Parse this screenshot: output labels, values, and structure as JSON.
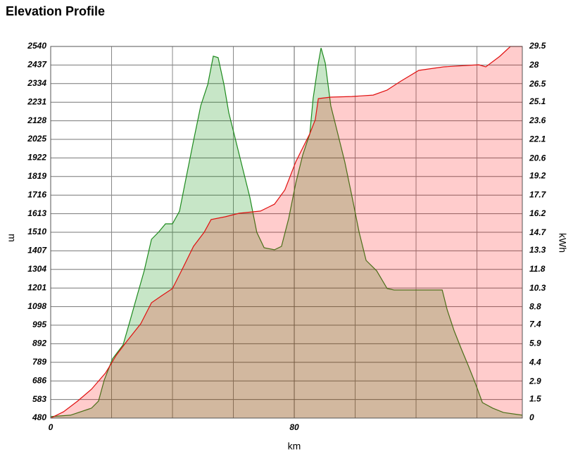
{
  "chart_data": {
    "type": "area",
    "title": "Elevation Profile",
    "x_label": "km",
    "y_label": "m",
    "y2_label": "kWh",
    "xlim": [
      0,
      154.9
    ],
    "xticks": [
      0,
      80
    ],
    "xgrid": [
      20,
      40,
      60,
      100,
      120,
      140
    ],
    "ylim": [
      480,
      2540
    ],
    "yticks": [
      480,
      583,
      686,
      789,
      892,
      995,
      1098,
      1201,
      1304,
      1407,
      1510,
      1613,
      1716,
      1819,
      1922,
      2025,
      2128,
      2231,
      2334,
      2437,
      2540
    ],
    "y2lim": [
      0,
      29.5
    ],
    "y2ticks": [
      0,
      1.5,
      2.9,
      4.4,
      5.9,
      7.4,
      8.8,
      10.3,
      11.8,
      13.3,
      14.7,
      16.2,
      17.7,
      19.2,
      20.6,
      22.1,
      23.6,
      25.1,
      26.5,
      28,
      29.5
    ],
    "grid": true,
    "series": [
      {
        "color": "#1e8a1e",
        "fill": "rgba(0,140,0,0.22)",
        "x": [
          0,
          6.5,
          13.4,
          15.7,
          17.6,
          20.3,
          23.8,
          26.1,
          28.4,
          30.7,
          33.1,
          35.4,
          37.7,
          40.0,
          42.3,
          44.6,
          46.9,
          49.3,
          51.6,
          53.4,
          55.0,
          56.9,
          58.5,
          60.8,
          63.1,
          65.4,
          67.7,
          70.1,
          73.5,
          75.8,
          78.2,
          80.5,
          82.8,
          85.1,
          86.2,
          87.9,
          88.8,
          90.2,
          92.0,
          94.3,
          96.6,
          99.0,
          101.3,
          103.6,
          107.1,
          110.5,
          112.8,
          128.6,
          130.2,
          132.5,
          134.8,
          137.2,
          139.5,
          141.8,
          145.2,
          148.7,
          154.9
        ],
        "values": [
          488,
          496,
          535,
          574,
          691,
          808,
          886,
          1022,
          1159,
          1296,
          1471,
          1510,
          1557,
          1557,
          1627,
          1822,
          2017,
          2212,
          2330,
          2486,
          2478,
          2330,
          2173,
          2017,
          1861,
          1705,
          1510,
          1424,
          1413,
          1432,
          1588,
          1783,
          1939,
          2056,
          2251,
          2447,
          2532,
          2447,
          2212,
          2056,
          1900,
          1705,
          1510,
          1354,
          1296,
          1198,
          1190,
          1190,
          1081,
          964,
          866,
          769,
          671,
          566,
          535,
          511,
          496
        ]
      },
      {
        "color": "#e01010",
        "fill": "rgba(255,0,0,0.2)",
        "axis": "y2",
        "x": [
          0,
          4.2,
          8.8,
          13.4,
          18.0,
          21.5,
          25.0,
          29.6,
          33.1,
          36.5,
          40.0,
          43.5,
          46.9,
          50.4,
          52.7,
          57.3,
          61.9,
          68.9,
          73.5,
          76.9,
          80.5,
          85.1,
          86.9,
          87.9,
          92.0,
          98.9,
          105.9,
          110.5,
          115.1,
          120.9,
          129.0,
          140.6,
          142.9,
          147.5,
          151.0,
          154.9
        ],
        "values": [
          0,
          0.5,
          1.34,
          2.29,
          3.58,
          4.97,
          6.09,
          7.49,
          9.16,
          9.72,
          10.28,
          11.96,
          13.63,
          14.75,
          15.76,
          15.98,
          16.26,
          16.43,
          16.98,
          18.1,
          20.34,
          22.57,
          23.69,
          25.36,
          25.48,
          25.53,
          25.64,
          26.04,
          26.76,
          27.6,
          27.88,
          28.05,
          27.88,
          28.72,
          29.5,
          29.5
        ]
      }
    ]
  }
}
